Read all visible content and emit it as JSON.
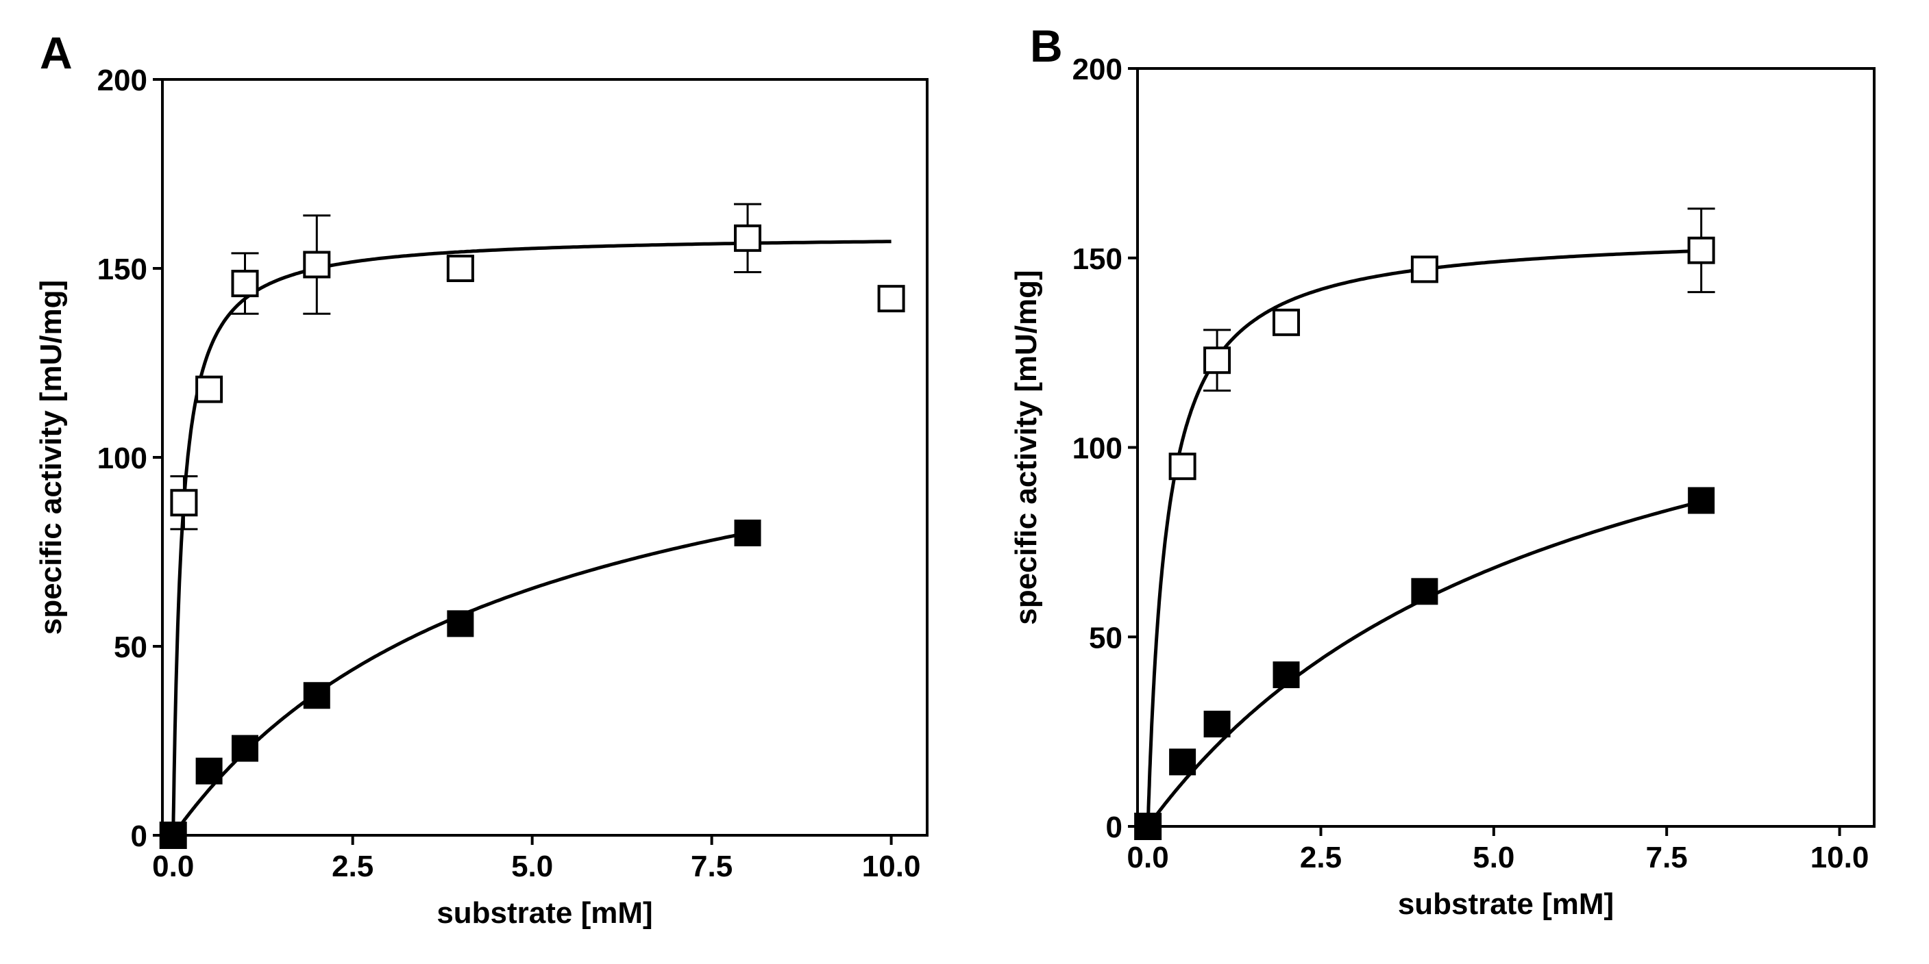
{
  "chart_data": [
    {
      "panel": "A",
      "type": "scatter",
      "title": "",
      "xlabel": "substrate [mM]",
      "ylabel": "specific activity [mU/mg]",
      "xlim": [
        -0.15,
        10.5
      ],
      "ylim": [
        0,
        200
      ],
      "xticks": [
        0.0,
        2.5,
        5.0,
        7.5,
        10.0
      ],
      "xtick_labels": [
        "0.0",
        "2.5",
        "5.0",
        "7.5",
        "10.0"
      ],
      "yticks": [
        0,
        50,
        100,
        150,
        200
      ],
      "ytick_labels": [
        "0",
        "50",
        "100",
        "150",
        "200"
      ],
      "series": [
        {
          "name": "open squares",
          "marker": "open-square",
          "x": [
            0,
            0.15,
            0.5,
            1,
            2,
            4,
            8,
            10
          ],
          "y": [
            0,
            88,
            118,
            146,
            151,
            150,
            158,
            142
          ],
          "yerr": [
            0,
            7,
            0,
            8,
            13,
            3,
            9,
            0
          ],
          "fit": {
            "model": "michaelis-menten",
            "vmax": 159,
            "km": 0.12,
            "x_end": 10
          }
        },
        {
          "name": "filled squares",
          "marker": "filled-square",
          "x": [
            0,
            0.5,
            1,
            2,
            4,
            8
          ],
          "y": [
            0,
            17,
            23,
            37,
            56,
            80
          ],
          "yerr": [
            0,
            0,
            0,
            0,
            0,
            0
          ],
          "fit": {
            "model": "michaelis-menten",
            "vmax": 128,
            "km": 4.8,
            "x_end": 8
          }
        }
      ]
    },
    {
      "panel": "B",
      "type": "scatter",
      "title": "",
      "xlabel": "substrate [mM]",
      "ylabel": "specific activity [mU/mg]",
      "xlim": [
        -0.15,
        10.5
      ],
      "ylim": [
        0,
        200
      ],
      "xticks": [
        0.0,
        2.5,
        5.0,
        7.5,
        10.0
      ],
      "xtick_labels": [
        "0.0",
        "2.5",
        "5.0",
        "7.5",
        "10.0"
      ],
      "yticks": [
        0,
        50,
        100,
        150,
        200
      ],
      "ytick_labels": [
        "0",
        "50",
        "100",
        "150",
        "200"
      ],
      "series": [
        {
          "name": "open squares",
          "marker": "open-square",
          "x": [
            0,
            0.5,
            1,
            2,
            4,
            8
          ],
          "y": [
            0,
            95,
            123,
            133,
            147,
            152
          ],
          "yerr": [
            0,
            0,
            8,
            0,
            0,
            11
          ],
          "fit": {
            "model": "michaelis-menten",
            "vmax": 157,
            "km": 0.27,
            "x_end": 8
          }
        },
        {
          "name": "filled squares",
          "marker": "filled-square",
          "x": [
            0,
            0.5,
            1,
            2,
            4,
            8
          ],
          "y": [
            0,
            17,
            27,
            40,
            62,
            86
          ],
          "yerr": [
            0,
            0,
            0,
            0,
            0,
            0
          ],
          "fit": {
            "model": "michaelis-menten",
            "vmax": 150,
            "km": 6.0,
            "x_end": 8
          }
        }
      ]
    }
  ]
}
